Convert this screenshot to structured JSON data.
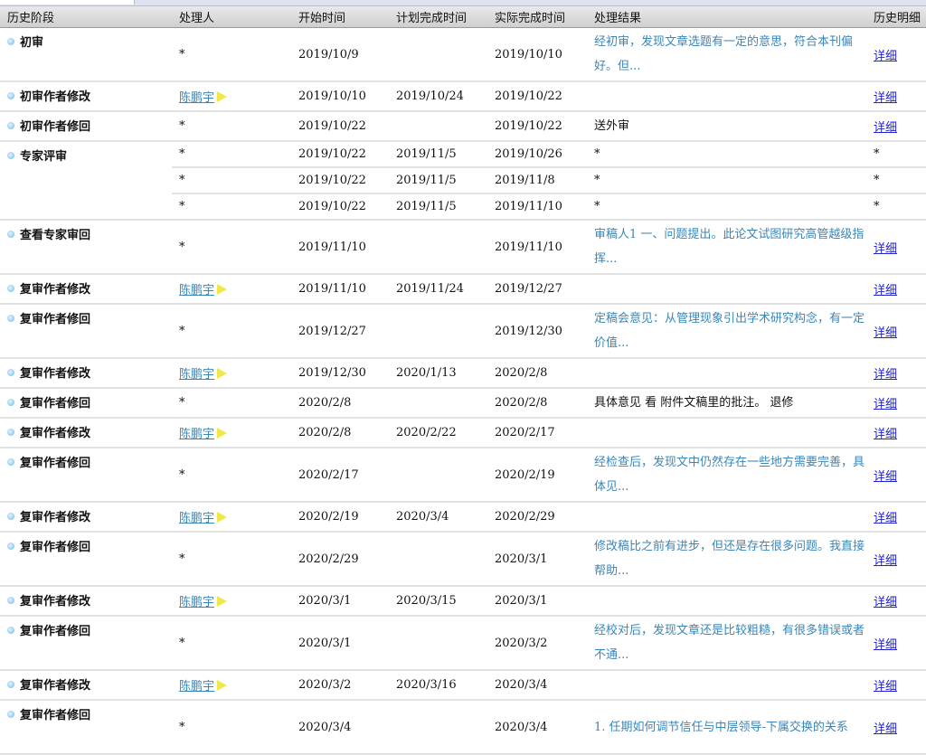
{
  "columns": [
    "历史阶段",
    "处理人",
    "开始时间",
    "计划完成时间",
    "实际完成时间",
    "处理结果",
    "历史明细"
  ],
  "rows": [
    {
      "stage": "初审",
      "handler": "*",
      "start": "2019/10/9",
      "planned": "",
      "actual": "2019/10/10",
      "result": "经初审，发现文章选题有一定的意思，符合本刊偏好。但...",
      "result_link": true,
      "detail": "详细",
      "two": true
    },
    {
      "stage": "初审作者修改",
      "handler": "陈鹏宇",
      "handler_link": true,
      "start": "2019/10/10",
      "planned": "2019/10/24",
      "actual": "2019/10/22",
      "result": "",
      "detail": "详细"
    },
    {
      "stage": "初审作者修回",
      "handler": "*",
      "start": "2019/10/22",
      "planned": "",
      "actual": "2019/10/22",
      "result": "送外审",
      "detail": "详细"
    },
    {
      "stage": "专家评审",
      "handler": "*",
      "start": "2019/10/22",
      "planned": "2019/11/5",
      "actual": "2019/10/26",
      "result": "*",
      "detail": "*",
      "plain": true,
      "rowspan": 3
    },
    {
      "stage": null,
      "handler": "*",
      "start": "2019/10/22",
      "planned": "2019/11/5",
      "actual": "2019/11/8",
      "result": "*",
      "detail": "*",
      "plain": true
    },
    {
      "stage": null,
      "handler": "*",
      "start": "2019/10/22",
      "planned": "2019/11/5",
      "actual": "2019/11/10",
      "result": "*",
      "detail": "*",
      "plain": true
    },
    {
      "stage": "查看专家审回",
      "handler": "*",
      "start": "2019/11/10",
      "planned": "",
      "actual": "2019/11/10",
      "result": "审稿人1 一、问题提出。此论文试图研究高管越级指挥...",
      "result_link": true,
      "detail": "详细",
      "two": true
    },
    {
      "stage": "复审作者修改",
      "handler": "陈鹏宇",
      "handler_link": true,
      "start": "2019/11/10",
      "planned": "2019/11/24",
      "actual": "2019/12/27",
      "result": "",
      "detail": "详细"
    },
    {
      "stage": "复审作者修回",
      "handler": "*",
      "start": "2019/12/27",
      "planned": "",
      "actual": "2019/12/30",
      "result": "定稿会意见：从管理现象引出学术研究构念，有一定价值...",
      "result_link": true,
      "detail": "详细",
      "two": true
    },
    {
      "stage": "复审作者修改",
      "handler": "陈鹏宇",
      "handler_link": true,
      "start": "2019/12/30",
      "planned": "2020/1/13",
      "actual": "2020/2/8",
      "result": "",
      "detail": "详细"
    },
    {
      "stage": "复审作者修回",
      "handler": "*",
      "start": "2020/2/8",
      "planned": "",
      "actual": "2020/2/8",
      "result": "具体意见 看 附件文稿里的批注。 退修",
      "detail": "详细"
    },
    {
      "stage": "复审作者修改",
      "handler": "陈鹏宇",
      "handler_link": true,
      "start": "2020/2/8",
      "planned": "2020/2/22",
      "actual": "2020/2/17",
      "result": "",
      "detail": "详细"
    },
    {
      "stage": "复审作者修回",
      "handler": "*",
      "start": "2020/2/17",
      "planned": "",
      "actual": "2020/2/19",
      "result": "经检查后，发现文中仍然存在一些地方需要完善，具体见...",
      "result_link": true,
      "detail": "详细",
      "two": true
    },
    {
      "stage": "复审作者修改",
      "handler": "陈鹏宇",
      "handler_link": true,
      "start": "2020/2/19",
      "planned": "2020/3/4",
      "actual": "2020/2/29",
      "result": "",
      "detail": "详细"
    },
    {
      "stage": "复审作者修回",
      "handler": "*",
      "start": "2020/2/29",
      "planned": "",
      "actual": "2020/3/1",
      "result": "修改稿比之前有进步，但还是存在很多问题。我直接帮助...",
      "result_link": true,
      "detail": "详细",
      "two": true
    },
    {
      "stage": "复审作者修改",
      "handler": "陈鹏宇",
      "handler_link": true,
      "start": "2020/3/1",
      "planned": "2020/3/15",
      "actual": "2020/3/1",
      "result": "",
      "detail": "详细"
    },
    {
      "stage": "复审作者修回",
      "handler": "*",
      "start": "2020/3/1",
      "planned": "",
      "actual": "2020/3/2",
      "result": "经校对后，发现文章还是比较粗糙，有很多错误或者不通...",
      "result_link": true,
      "detail": "详细",
      "two": true
    },
    {
      "stage": "复审作者修改",
      "handler": "陈鹏宇",
      "handler_link": true,
      "start": "2020/3/2",
      "planned": "2020/3/16",
      "actual": "2020/3/4",
      "result": "",
      "detail": "详细"
    },
    {
      "stage": "复审作者修回",
      "handler": "*",
      "start": "2020/3/4",
      "planned": "",
      "actual": "2020/3/4",
      "result": "1. 任期如何调节信任与中层领导-下属交换的关系",
      "result_link": true,
      "detail": "详细",
      "two": true
    }
  ]
}
